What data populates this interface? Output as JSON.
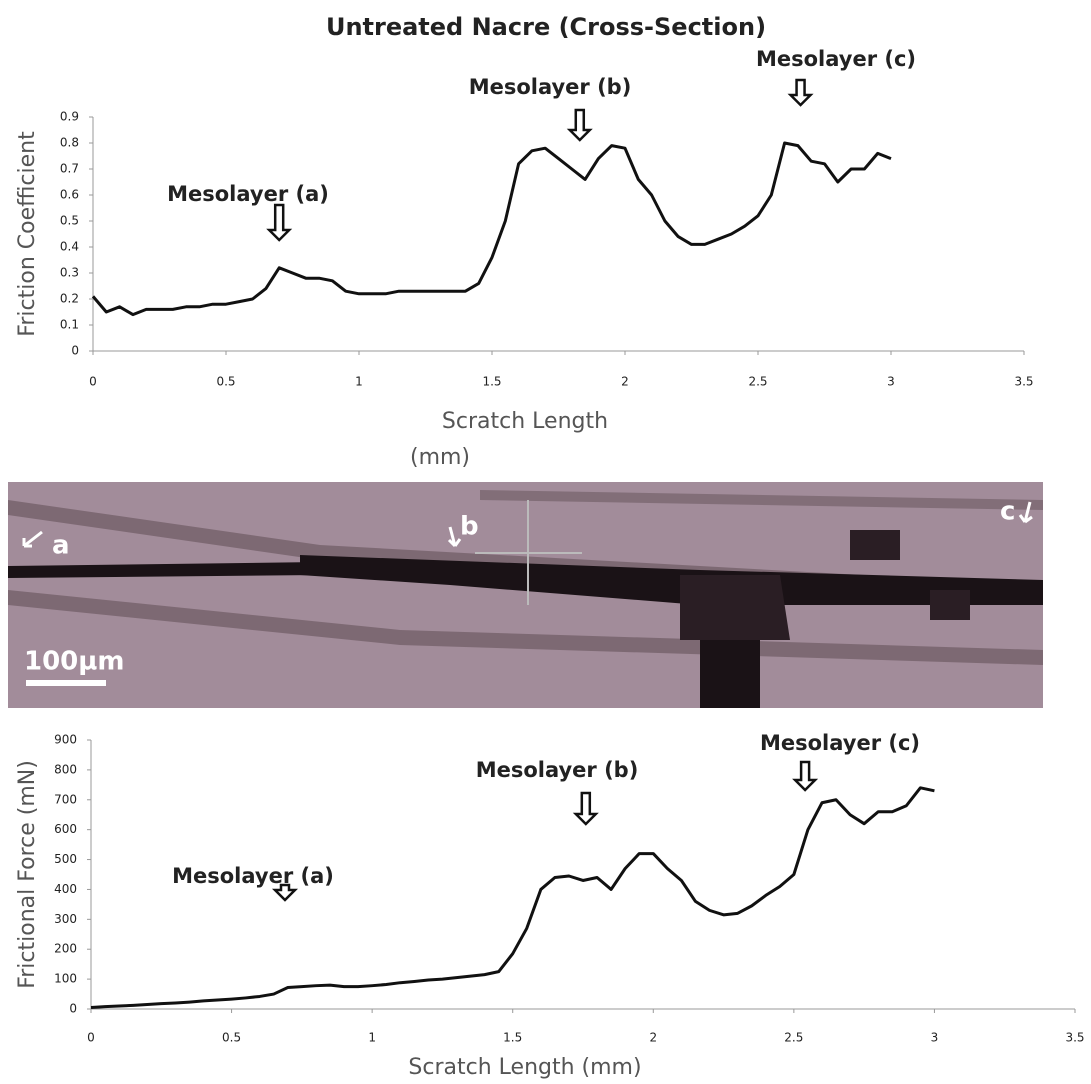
{
  "chart_data": [
    {
      "type": "line",
      "title": "Untreated Nacre (Cross-Section)",
      "ylabel": "Friction Coefficient",
      "xlabel": [
        "Scratch Length",
        "(mm)"
      ],
      "x": [
        0,
        0.05,
        0.1,
        0.15,
        0.2,
        0.25,
        0.3,
        0.35,
        0.4,
        0.45,
        0.5,
        0.55,
        0.6,
        0.65,
        0.7,
        0.75,
        0.8,
        0.85,
        0.9,
        0.95,
        1,
        1.05,
        1.1,
        1.15,
        1.2,
        1.25,
        1.3,
        1.35,
        1.4,
        1.45,
        1.5,
        1.55,
        1.6,
        1.65,
        1.7,
        1.75,
        1.8,
        1.85,
        1.9,
        1.95,
        2,
        2.05,
        2.1,
        2.15,
        2.2,
        2.25,
        2.3,
        2.35,
        2.4,
        2.45,
        2.5,
        2.55,
        2.6,
        2.65,
        2.7,
        2.75,
        2.8,
        2.85,
        2.9,
        2.95,
        3
      ],
      "series": [
        {
          "color": "#111111",
          "values": [
            0.21,
            0.15,
            0.17,
            0.14,
            0.16,
            0.16,
            0.16,
            0.17,
            0.17,
            0.18,
            0.18,
            0.19,
            0.2,
            0.24,
            0.32,
            0.3,
            0.28,
            0.28,
            0.27,
            0.23,
            0.22,
            0.22,
            0.22,
            0.23,
            0.23,
            0.23,
            0.23,
            0.23,
            0.23,
            0.26,
            0.36,
            0.5,
            0.72,
            0.77,
            0.78,
            0.74,
            0.7,
            0.66,
            0.74,
            0.79,
            0.78,
            0.66,
            0.6,
            0.5,
            0.44,
            0.41,
            0.41,
            0.43,
            0.45,
            0.48,
            0.52,
            0.6,
            0.8,
            0.79,
            0.73,
            0.72,
            0.65,
            0.7,
            0.7,
            0.76,
            0.74
          ]
        }
      ],
      "xlim": [
        0,
        3.5
      ],
      "xticks": [
        0,
        0.5,
        1,
        1.5,
        2,
        2.5,
        3,
        3.5
      ],
      "ylim": [
        0,
        0.9
      ],
      "yticks": [
        0,
        0.1,
        0.2,
        0.3,
        0.4,
        0.5,
        0.6,
        0.7,
        0.8,
        0.9
      ],
      "grid": false,
      "annotations": [
        {
          "text": "Mesolayer (a)",
          "x": 0.7
        },
        {
          "text": "Mesolayer (b)",
          "x": 1.83
        },
        {
          "text": "Mesolayer (c)",
          "x": 2.66
        }
      ]
    },
    {
      "type": "line",
      "ylabel": "Frictional Force (mN)",
      "xlabel": [
        "Scratch Length (mm)"
      ],
      "x": [
        0,
        0.05,
        0.1,
        0.15,
        0.2,
        0.25,
        0.3,
        0.35,
        0.4,
        0.45,
        0.5,
        0.55,
        0.6,
        0.65,
        0.7,
        0.75,
        0.8,
        0.85,
        0.9,
        0.95,
        1,
        1.05,
        1.1,
        1.15,
        1.2,
        1.25,
        1.3,
        1.35,
        1.4,
        1.45,
        1.5,
        1.55,
        1.6,
        1.65,
        1.7,
        1.75,
        1.8,
        1.85,
        1.9,
        1.95,
        2,
        2.05,
        2.1,
        2.15,
        2.2,
        2.25,
        2.3,
        2.35,
        2.4,
        2.45,
        2.5,
        2.55,
        2.6,
        2.65,
        2.7,
        2.75,
        2.8,
        2.85,
        2.9,
        2.95,
        3
      ],
      "series": [
        {
          "color": "#111111",
          "values": [
            5,
            8,
            10,
            12,
            15,
            18,
            20,
            23,
            27,
            30,
            33,
            37,
            42,
            50,
            72,
            75,
            78,
            80,
            75,
            75,
            78,
            82,
            88,
            92,
            97,
            100,
            105,
            110,
            115,
            125,
            185,
            270,
            400,
            440,
            445,
            430,
            440,
            400,
            470,
            520,
            520,
            470,
            430,
            360,
            330,
            315,
            320,
            345,
            380,
            410,
            450,
            600,
            690,
            700,
            650,
            620,
            660,
            660,
            680,
            740,
            730
          ]
        }
      ],
      "xlim": [
        0,
        3.5
      ],
      "xticks": [
        0,
        0.5,
        1,
        1.5,
        2,
        2.5,
        3,
        3.5
      ],
      "ylim": [
        0,
        900
      ],
      "yticks": [
        0,
        100,
        200,
        300,
        400,
        500,
        600,
        700,
        800,
        900
      ],
      "grid": false,
      "annotations": [
        {
          "text": "Mesolayer (a)",
          "x": 0.69
        },
        {
          "text": "Mesolayer (b)",
          "x": 1.76
        },
        {
          "text": "Mesolayer (c)",
          "x": 2.54
        }
      ]
    }
  ],
  "image": {
    "labels": [
      "a",
      "b",
      "c",
      "100µm"
    ]
  }
}
